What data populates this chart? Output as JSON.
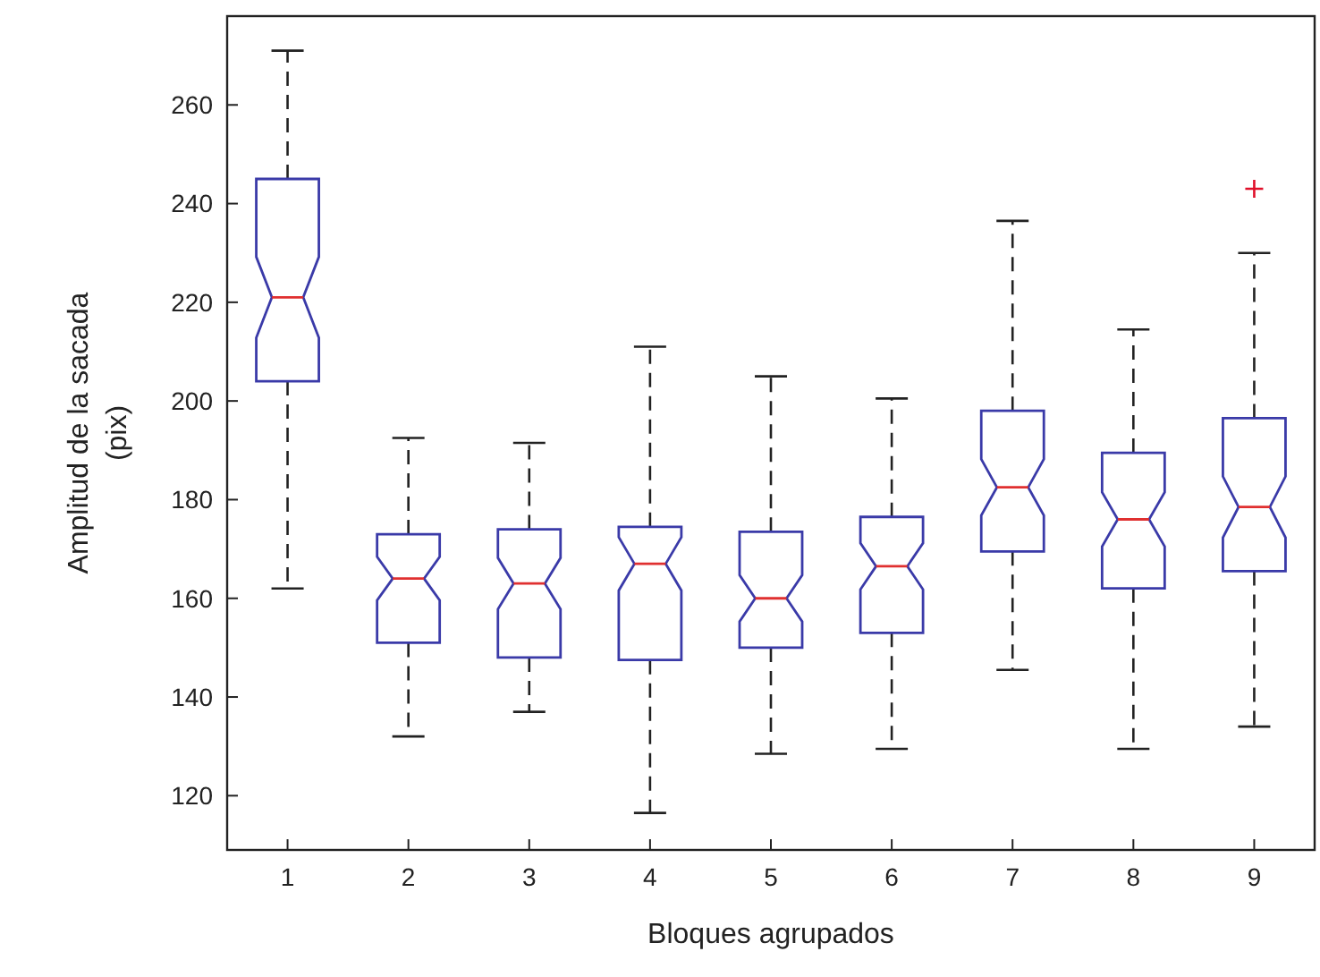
{
  "chart_data": {
    "type": "box",
    "xlabel": "Bloques agrupados",
    "ylabel": "Amplitud de la sacada\n(pix)",
    "categories": [
      "1",
      "2",
      "3",
      "4",
      "5",
      "6",
      "7",
      "8",
      "9"
    ],
    "ylim": [
      109,
      278
    ],
    "yticks": [
      120,
      140,
      160,
      180,
      200,
      220,
      240,
      260
    ],
    "boxes": [
      {
        "low": 162,
        "q1": 204,
        "median": 221,
        "q3": 245,
        "high": 271
      },
      {
        "low": 132,
        "q1": 151,
        "median": 164,
        "q3": 173,
        "high": 192.5
      },
      {
        "low": 137,
        "q1": 148,
        "median": 163,
        "q3": 174,
        "high": 191.5
      },
      {
        "low": 116.5,
        "q1": 147.5,
        "median": 167,
        "q3": 174.5,
        "high": 211
      },
      {
        "low": 128.5,
        "q1": 150,
        "median": 160,
        "q3": 173.5,
        "high": 205
      },
      {
        "low": 129.5,
        "q1": 153,
        "median": 166.5,
        "q3": 176.5,
        "high": 200.5
      },
      {
        "low": 145.5,
        "q1": 169.5,
        "median": 182.5,
        "q3": 198,
        "high": 236.5
      },
      {
        "low": 129.5,
        "q1": 162,
        "median": 176,
        "q3": 189.5,
        "high": 214.5
      },
      {
        "low": 134,
        "q1": 165.5,
        "median": 178.5,
        "q3": 196.5,
        "high": 230,
        "outliers": [
          243
        ]
      }
    ],
    "color": "#3a3aa8",
    "grid": false
  }
}
